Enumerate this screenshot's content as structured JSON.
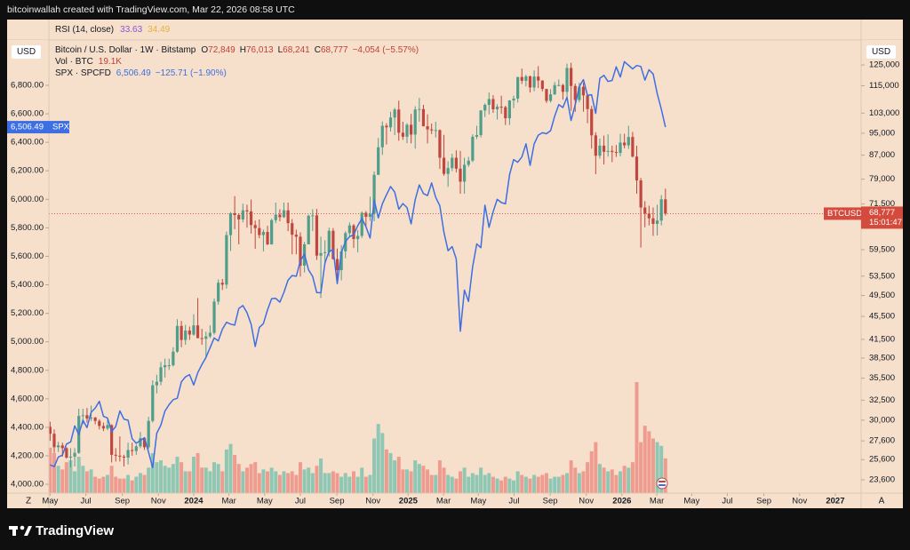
{
  "header": {
    "credit": "bitcoinwallah created with TradingView.com, Mar 22, 2026 08:58 UTC"
  },
  "footer": {
    "brand": "TradingView"
  },
  "chart_data": {
    "type": "candlestick",
    "indicator": {
      "name": "RSI (14, close)",
      "values": [
        33.63,
        34.49
      ],
      "colors": [
        "#8a55d4",
        "#e0b23c"
      ]
    },
    "legend": {
      "title": "Bitcoin / U.S. Dollar · 1W · Bitstamp",
      "ohlc_keys": [
        "O",
        "H",
        "L",
        "C"
      ],
      "ohlc_values": [
        "72,849",
        "76,013",
        "68,241",
        "68,777"
      ],
      "change": "−4,054 (−5.57%)",
      "color": "#c0413a"
    },
    "symbol": "BTCUSD",
    "price_label": "68,777",
    "countdown": "15:01:47",
    "price_color": "#d44a3d",
    "y_unit": "USD",
    "y2_unit": "USD",
    "scale_buttons": [
      "Z",
      "A"
    ],
    "xlim": [
      -0.3,
      197.7
    ],
    "xticks": [
      {
        "value": 0,
        "label": "May"
      },
      {
        "value": 8.7,
        "label": "Jul"
      },
      {
        "value": 17.6,
        "label": "Sep"
      },
      {
        "value": 26.4,
        "label": "Nov"
      },
      {
        "value": 35,
        "label": "2024"
      },
      {
        "value": 43.6,
        "label": "Mar"
      },
      {
        "value": 52.3,
        "label": "May"
      },
      {
        "value": 61,
        "label": "Jul"
      },
      {
        "value": 69.9,
        "label": "Sep"
      },
      {
        "value": 78.7,
        "label": "Nov"
      },
      {
        "value": 87.3,
        "label": "2025"
      },
      {
        "value": 95.9,
        "label": "Mar"
      },
      {
        "value": 104.4,
        "label": "May"
      },
      {
        "value": 113.1,
        "label": "Jul"
      },
      {
        "value": 121.9,
        "label": "Sep"
      },
      {
        "value": 130.7,
        "label": "Nov"
      },
      {
        "value": 139.4,
        "label": "2026"
      },
      {
        "value": 147.9,
        "label": "Mar"
      },
      {
        "value": 156.4,
        "label": "May"
      },
      {
        "value": 165.1,
        "label": "Jul"
      },
      {
        "value": 174,
        "label": "Sep"
      },
      {
        "value": 182.7,
        "label": "Nov"
      },
      {
        "value": 191.4,
        "label": "2027"
      }
    ],
    "ylim": [
      3938,
      7118
    ],
    "yticks": [
      {
        "value": 4000,
        "label": "4,000.00"
      },
      {
        "value": 4200,
        "label": "4,200.00"
      },
      {
        "value": 4400,
        "label": "4,400.00"
      },
      {
        "value": 4600,
        "label": "4,600.00"
      },
      {
        "value": 4800,
        "label": "4,800.00"
      },
      {
        "value": 5000,
        "label": "5,000.00"
      },
      {
        "value": 5200,
        "label": "5,200.00"
      },
      {
        "value": 5400,
        "label": "5,400.00"
      },
      {
        "value": 5600,
        "label": "5,600.00"
      },
      {
        "value": 5800,
        "label": "5,800.00"
      },
      {
        "value": 6000,
        "label": "6,000.00"
      },
      {
        "value": 6200,
        "label": "6,200.00"
      },
      {
        "value": 6400,
        "label": "6,400.00"
      },
      {
        "value": 6600,
        "label": "6,600.00"
      },
      {
        "value": 6800,
        "label": "6,800.00"
      }
    ],
    "y2_log": true,
    "y2lim": [
      22370,
      138200
    ],
    "y2ticks": [
      {
        "value": 125000,
        "label": "125,000"
      },
      {
        "value": 115000,
        "label": "115,000"
      },
      {
        "value": 103000,
        "label": "103,000"
      },
      {
        "value": 95000,
        "label": "95,000"
      },
      {
        "value": 87000,
        "label": "87,000"
      },
      {
        "value": 79000,
        "label": "79,000"
      },
      {
        "value": 71500,
        "label": "71,500"
      },
      {
        "value": 59500,
        "label": "59,500"
      },
      {
        "value": 53500,
        "label": "53,500"
      },
      {
        "value": 49500,
        "label": "49,500"
      },
      {
        "value": 45500,
        "label": "45,500"
      },
      {
        "value": 41500,
        "label": "41,500"
      },
      {
        "value": 38500,
        "label": "38,500"
      },
      {
        "value": 35500,
        "label": "35,500"
      },
      {
        "value": 32500,
        "label": "32,500"
      },
      {
        "value": 30000,
        "label": "30,000"
      },
      {
        "value": 27600,
        "label": "27,600"
      },
      {
        "value": 25600,
        "label": "25,600"
      },
      {
        "value": 23600,
        "label": "23,600"
      }
    ],
    "up_color": "#4f9d8b",
    "down_color": "#c0473f",
    "candles": {
      "axis": "y2",
      "open": [
        29200,
        28400,
        26900,
        27100,
        26800,
        25800,
        25900,
        26300,
        30500,
        30600,
        30200,
        30300,
        29900,
        29300,
        29000,
        29400,
        26100,
        26000,
        25900,
        25800,
        26600,
        26500,
        27000,
        27900,
        26900,
        29900,
        34500,
        35000,
        37100,
        37400,
        37400,
        39500,
        43800,
        41400,
        43000,
        42300,
        43900,
        41700,
        41600,
        42000,
        42600,
        48300,
        52100,
        51700,
        63100,
        68900,
        68400,
        67200,
        69700,
        69400,
        65700,
        64900,
        63100,
        63900,
        60800,
        67000,
        68500,
        67800,
        69700,
        66200,
        63200,
        62700,
        55800,
        60800,
        68200,
        68300,
        58100,
        58700,
        58900,
        64200,
        57300,
        54800,
        59100,
        63600,
        65600,
        62100,
        62900,
        69000,
        67900,
        68700,
        80400,
        89800,
        97900,
        97300,
        101200,
        104500,
        95200,
        93700,
        98300,
        94500,
        104500,
        104700,
        97700,
        96500,
        96100,
        96200,
        86100,
        80700,
        82600,
        86100,
        82400,
        78200,
        83700,
        85100,
        93700,
        94300,
        104100,
        106500,
        109000,
        104600,
        105700,
        105500,
        100900,
        108400,
        109200,
        119100,
        117300,
        119400,
        114200,
        119300,
        117400,
        113500,
        108200,
        111100,
        115300,
        115300,
        112200,
        123500,
        114900,
        108600,
        114500,
        110600,
        104700,
        94200,
        86800,
        90400,
        88200,
        88500,
        88100,
        87800,
        91500,
        90500,
        93600,
        86500,
        78600,
        70500,
        68800,
        67500,
        66000,
        66900,
        72849
      ],
      "high": [
        29800,
        28900,
        27500,
        27400,
        26900,
        26800,
        26800,
        31400,
        31400,
        31500,
        31800,
        30400,
        30100,
        29700,
        30200,
        29500,
        26800,
        28100,
        26100,
        27400,
        27400,
        27200,
        28600,
        28000,
        30400,
        35200,
        36000,
        37900,
        38400,
        38400,
        40200,
        45000,
        44700,
        44000,
        43700,
        45900,
        49000,
        43300,
        42800,
        43900,
        48900,
        52800,
        52900,
        64000,
        69200,
        73800,
        68900,
        71600,
        71300,
        72800,
        66900,
        67200,
        64500,
        65500,
        67400,
        71900,
        70000,
        71900,
        71900,
        67300,
        64500,
        63800,
        61400,
        68500,
        70000,
        70100,
        62700,
        61800,
        65000,
        64900,
        59800,
        60600,
        64100,
        66400,
        66000,
        64400,
        69400,
        69500,
        73600,
        81500,
        93200,
        99600,
        98900,
        103600,
        105200,
        108300,
        99500,
        98900,
        102700,
        105900,
        109500,
        106500,
        102500,
        98800,
        99500,
        96500,
        94400,
        84900,
        87500,
        88700,
        88500,
        86100,
        86400,
        94600,
        97900,
        104300,
        107100,
        111900,
        110700,
        106800,
        110500,
        106100,
        108500,
        110500,
        119200,
        123200,
        120200,
        119800,
        122300,
        124400,
        117600,
        113600,
        113400,
        116700,
        117900,
        115900,
        125700,
        126100,
        116000,
        116400,
        116400,
        111100,
        106000,
        95400,
        93000,
        94100,
        94600,
        90400,
        90600,
        94800,
        94800,
        97900,
        95500,
        90400,
        79400,
        72300,
        71000,
        70500,
        71300,
        74100,
        76013
      ],
      "low": [
        27600,
        26300,
        26400,
        25900,
        25700,
        24800,
        24900,
        26200,
        29500,
        29700,
        29900,
        29500,
        28900,
        28700,
        28800,
        25300,
        25400,
        25400,
        24900,
        25100,
        26000,
        26100,
        26800,
        26600,
        26700,
        29700,
        33400,
        34500,
        35600,
        36700,
        37200,
        39300,
        40200,
        40600,
        41400,
        42100,
        41700,
        40600,
        38500,
        41700,
        42300,
        47700,
        50600,
        50900,
        59200,
        64600,
        60800,
        66400,
        65000,
        63500,
        59700,
        62300,
        59100,
        60600,
        60700,
        66200,
        66700,
        67600,
        64100,
        58400,
        58400,
        53400,
        54300,
        60800,
        64100,
        57100,
        49000,
        56100,
        57900,
        57200,
        52600,
        52600,
        57500,
        62700,
        59900,
        58900,
        62400,
        65300,
        66800,
        66700,
        80300,
        87100,
        90800,
        95700,
        94300,
        92200,
        92500,
        91300,
        91200,
        89300,
        99500,
        97700,
        91200,
        94700,
        93400,
        82300,
        80100,
        76600,
        81600,
        81200,
        74500,
        74500,
        83000,
        84600,
        92800,
        93400,
        101400,
        102500,
        103100,
        100400,
        102700,
        98200,
        98200,
        105100,
        107500,
        115800,
        114700,
        111900,
        112500,
        113900,
        112400,
        107300,
        107500,
        110800,
        114700,
        108700,
        109100,
        104000,
        103500,
        107600,
        103600,
        98900,
        89300,
        80600,
        85800,
        83800,
        86500,
        84600,
        86400,
        86600,
        89400,
        89200,
        86200,
        74500,
        60000,
        65100,
        65600,
        62900,
        63000,
        65600,
        68241
      ],
      "close": [
        28400,
        26900,
        27100,
        26800,
        25800,
        25900,
        26300,
        30500,
        30600,
        30200,
        30300,
        29900,
        29300,
        29000,
        29400,
        26100,
        26000,
        25900,
        25800,
        26600,
        26500,
        27000,
        27900,
        26900,
        29900,
        34500,
        35000,
        37100,
        37400,
        37400,
        39500,
        43800,
        41400,
        43000,
        42300,
        43900,
        41700,
        41600,
        42000,
        42600,
        48300,
        52100,
        51700,
        63100,
        68900,
        68400,
        67200,
        69700,
        69400,
        65700,
        64900,
        63100,
        63900,
        60800,
        67000,
        68500,
        67800,
        69700,
        66200,
        63200,
        62700,
        55800,
        60800,
        68200,
        68300,
        58100,
        58700,
        58900,
        64200,
        57300,
        54800,
        59100,
        63600,
        65600,
        62100,
        62900,
        69000,
        67900,
        68700,
        80400,
        89800,
        97900,
        97300,
        101200,
        104500,
        95200,
        93700,
        98300,
        94500,
        104500,
        104700,
        97700,
        96500,
        96100,
        96200,
        86100,
        80700,
        82600,
        86100,
        82400,
        78200,
        83700,
        85100,
        93700,
        94300,
        104100,
        106500,
        109000,
        104600,
        105700,
        105500,
        100900,
        108400,
        109200,
        119100,
        117300,
        119400,
        114200,
        119300,
        117400,
        113500,
        108200,
        111100,
        115300,
        115300,
        112200,
        123500,
        114900,
        108600,
        114500,
        110600,
        104700,
        94200,
        86800,
        90400,
        88200,
        88500,
        88100,
        87800,
        91500,
        90500,
        93600,
        86500,
        78600,
        70500,
        68800,
        67500,
        66000,
        66900,
        72849,
        68777
      ]
    },
    "volume": {
      "name": "Vol · BTC",
      "last_label": "19.1K",
      "label_color": "#c0413a",
      "up_color": "#8ec7b3",
      "down_color": "#ef9c90",
      "values": [
        25000,
        22000,
        15000,
        13000,
        17000,
        18000,
        12000,
        20000,
        15000,
        12000,
        13000,
        9000,
        8000,
        9000,
        10000,
        15000,
        9000,
        8000,
        8000,
        10000,
        7000,
        9000,
        11000,
        10000,
        14000,
        22000,
        17000,
        18000,
        15000,
        14000,
        16000,
        20000,
        17000,
        12000,
        12000,
        20000,
        22000,
        14000,
        14000,
        12000,
        17000,
        16000,
        12000,
        24000,
        27000,
        21000,
        16000,
        12000,
        14000,
        16000,
        17000,
        11000,
        13000,
        12000,
        14000,
        12000,
        10000,
        12000,
        11000,
        12000,
        10000,
        17000,
        13000,
        14000,
        11000,
        15000,
        19000,
        11000,
        11000,
        12000,
        11000,
        9000,
        11000,
        9000,
        12000,
        9000,
        14000,
        9000,
        10000,
        30000,
        38000,
        33000,
        24000,
        22000,
        18000,
        20000,
        13000,
        13000,
        12000,
        18000,
        16000,
        15000,
        13000,
        10000,
        10000,
        18000,
        14000,
        10000,
        9000,
        8000,
        12000,
        14000,
        9000,
        11000,
        10000,
        14000,
        10000,
        11000,
        9000,
        8000,
        7000,
        9000,
        8000,
        7000,
        12000,
        10000,
        9000,
        8000,
        10000,
        9000,
        10000,
        11000,
        8000,
        9000,
        9000,
        10000,
        11000,
        18000,
        14000,
        11000,
        12000,
        17000,
        23000,
        28000,
        16000,
        14000,
        12000,
        13000,
        10000,
        12000,
        15000,
        14000,
        17000,
        61000,
        28000,
        37000,
        34000,
        30000,
        28000,
        26000,
        19100
      ]
    },
    "series": [
      {
        "name": "SPX · SPCFD",
        "color": "#3d6fe3",
        "axis": "y",
        "last_label": "6,506.49",
        "change": "−125.71 (−1.90%)",
        "tag": "SPX",
        "values": [
          4136,
          4124,
          4191,
          4205,
          4282,
          4298,
          4410,
          4348,
          4450,
          4398,
          4505,
          4536,
          4582,
          4478,
          4464,
          4370,
          4405,
          4515,
          4457,
          4450,
          4320,
          4288,
          4308,
          4327,
          4224,
          4117,
          4358,
          4415,
          4514,
          4559,
          4594,
          4604,
          4719,
          4754,
          4770,
          4697,
          4784,
          4840,
          4891,
          4959,
          5027,
          5006,
          5089,
          5137,
          5124,
          5117,
          5234,
          5254,
          5204,
          5123,
          4967,
          5100,
          5128,
          5223,
          5303,
          5305,
          5278,
          5347,
          5432,
          5465,
          5460,
          5567,
          5615,
          5505,
          5459,
          5346,
          5344,
          5554,
          5634,
          5648,
          5408,
          5626,
          5703,
          5738,
          5751,
          5815,
          5865,
          5808,
          5728,
          5995,
          5870,
          5969,
          6032,
          6090,
          6051,
          5931,
          5970,
          5942,
          5827,
          5997,
          6101,
          6040,
          6026,
          6115,
          6013,
          5955,
          5770,
          5639,
          5668,
          5581,
          5074,
          5363,
          5283,
          5525,
          5687,
          5660,
          5958,
          5803,
          5912,
          6000,
          5977,
          5968,
          6173,
          6279,
          6260,
          6297,
          6389,
          6238,
          6389,
          6450,
          6467,
          6460,
          6482,
          6584,
          6664,
          6644,
          6716,
          6553,
          6664,
          6791,
          6840,
          6729,
          6734,
          6603,
          6849,
          6870,
          6827,
          6834,
          6930,
          6858,
          6966,
          6940,
          6915,
          6939,
          6932,
          6836,
          6909,
          6879,
          6740,
          6632,
          6506.49
        ]
      }
    ]
  }
}
